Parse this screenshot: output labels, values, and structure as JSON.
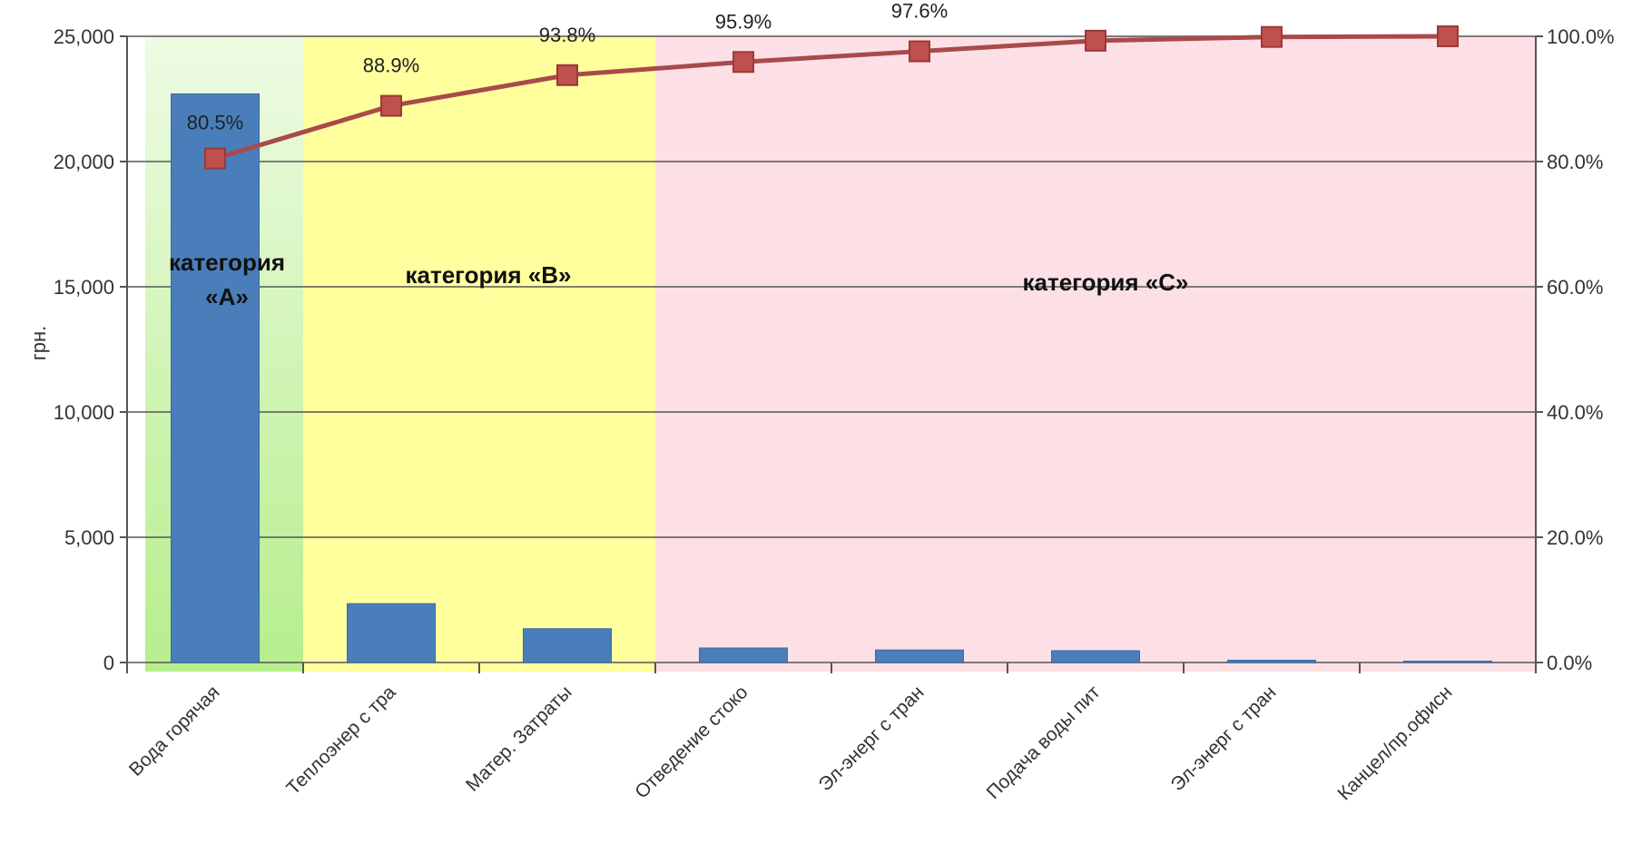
{
  "chart_data": {
    "type": "bar",
    "categories": [
      "Вода горячая",
      "Теплоэнер с тра",
      "Матер. Затраты",
      "Отведение стоко",
      "Эл-энерг с тран",
      "Подача воды пит",
      "Эл-энерг с тран",
      "Канцел/пр.офисн"
    ],
    "values": [
      22700,
      2350,
      1350,
      580,
      500,
      470,
      90,
      20
    ],
    "series": [
      {
        "values": [
          22700,
          2350,
          1350,
          580,
          500,
          470,
          90,
          20
        ],
        "color": "#4a7ebb"
      },
      {
        "values": [
          80.5,
          88.9,
          93.8,
          95.9,
          97.6,
          99.3,
          99.9,
          100.0
        ],
        "color": "#a94a4a",
        "axis": "right"
      }
    ],
    "cumulative_labels": [
      "80.5%",
      "88.9%",
      "93.8%",
      "95.9%",
      "97.6%",
      "",
      "",
      ""
    ],
    "ylabel": "грн.",
    "ylim": [
      0,
      25000
    ],
    "yticks": [
      "0",
      "5,000",
      "10,000",
      "15,000",
      "20,000",
      "25,000"
    ],
    "y2lim": [
      0,
      100
    ],
    "y2ticks": [
      "0.0%",
      "20.0%",
      "40.0%",
      "60.0%",
      "80.0%",
      "100.0%"
    ],
    "grid": true,
    "zones": [
      {
        "label_lines": [
          "категория",
          "«А»"
        ],
        "from": 0,
        "to": 1,
        "color": "#c8f0a0"
      },
      {
        "label_lines": [
          "категория «В»"
        ],
        "from": 1,
        "to": 3,
        "color": "#ffff9e"
      },
      {
        "label_lines": [
          "категория «С»"
        ],
        "from": 3,
        "to": 8,
        "color": "#fde0e6"
      }
    ]
  }
}
